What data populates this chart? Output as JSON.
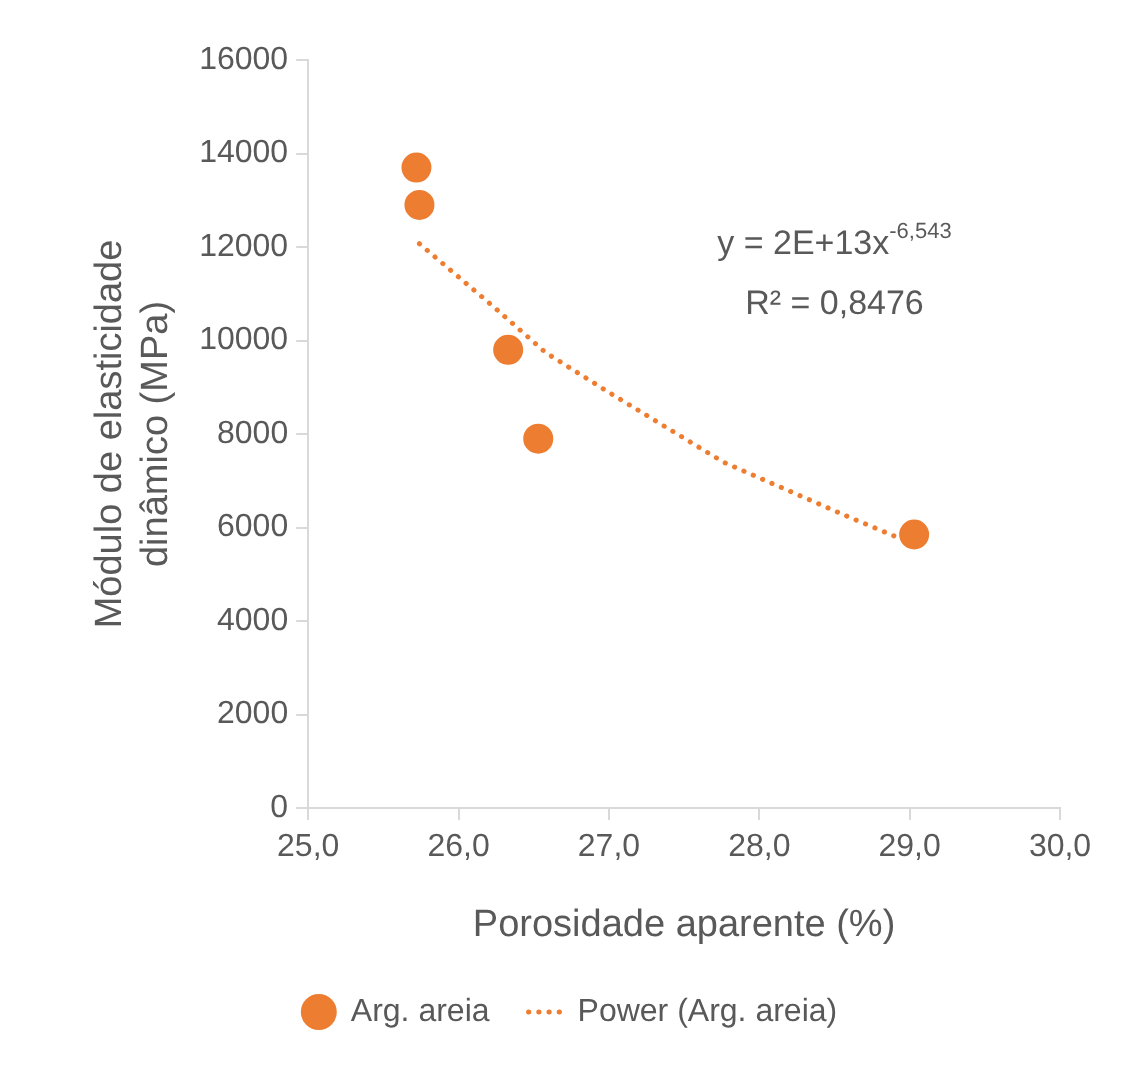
{
  "chart_data": {
    "type": "scatter",
    "xlabel": "Porosidade aparente (%)",
    "ylabel": "Módulo de elasticidade dinâmico (MPa)",
    "xlim": [
      25,
      30
    ],
    "xticks": [
      {
        "value": 25,
        "label": "25,0"
      },
      {
        "value": 26,
        "label": "26,0"
      },
      {
        "value": 27,
        "label": "27,0"
      },
      {
        "value": 28,
        "label": "28,0"
      },
      {
        "value": 29,
        "label": "29,0"
      },
      {
        "value": 30,
        "label": "30,0"
      }
    ],
    "ylim": [
      0,
      16000
    ],
    "yticks": [
      0,
      2000,
      4000,
      6000,
      8000,
      10000,
      12000,
      14000,
      16000
    ],
    "grid": false,
    "legend": "bottom",
    "annotations": [
      "y = 2E+13x$^{-6,543}$",
      "R² = 0,8476"
    ],
    "series": [
      {
        "name": "Arg. areia",
        "type": "scatter",
        "color": "#ed7d31",
        "marker": "circle",
        "x": [
          25.72,
          25.74,
          26.33,
          26.53,
          29.03
        ],
        "values": [
          13700,
          12900,
          9800,
          7900,
          5850
        ]
      },
      {
        "name": "Power (Arg. areia)",
        "type": "line",
        "color": "#ed7d31",
        "marker": "none",
        "line_style": "dotted",
        "x": [
          25.74,
          26.23,
          26.58,
          27.0,
          27.76,
          28.57,
          28.94
        ],
        "values": [
          12070,
          10730,
          9740,
          8890,
          7400,
          6260,
          5760
        ]
      }
    ]
  }
}
